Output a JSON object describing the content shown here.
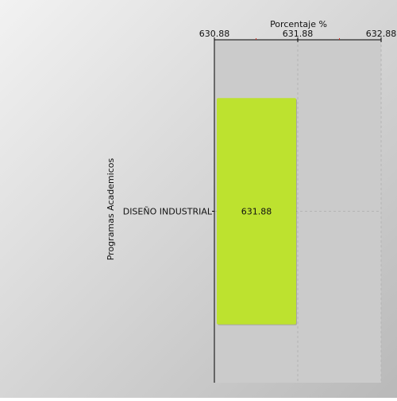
{
  "chart_data": {
    "type": "bar",
    "orientation": "horizontal",
    "categories": [
      "DISEÑO INDUSTRIAL"
    ],
    "series": [
      {
        "values": [
          631.88
        ]
      }
    ],
    "data_labels": [
      "631.88"
    ],
    "xlabel": "Porcentaje %",
    "ylabel": "Programas Academicos",
    "xlim": [
      630.88,
      632.88
    ],
    "x_ticks": [
      "630.88",
      "631.88",
      "632.88"
    ],
    "x_axis_position": "top",
    "grid": true,
    "bar_color": "#bde22f",
    "plot_background": "#cbcbcb"
  }
}
